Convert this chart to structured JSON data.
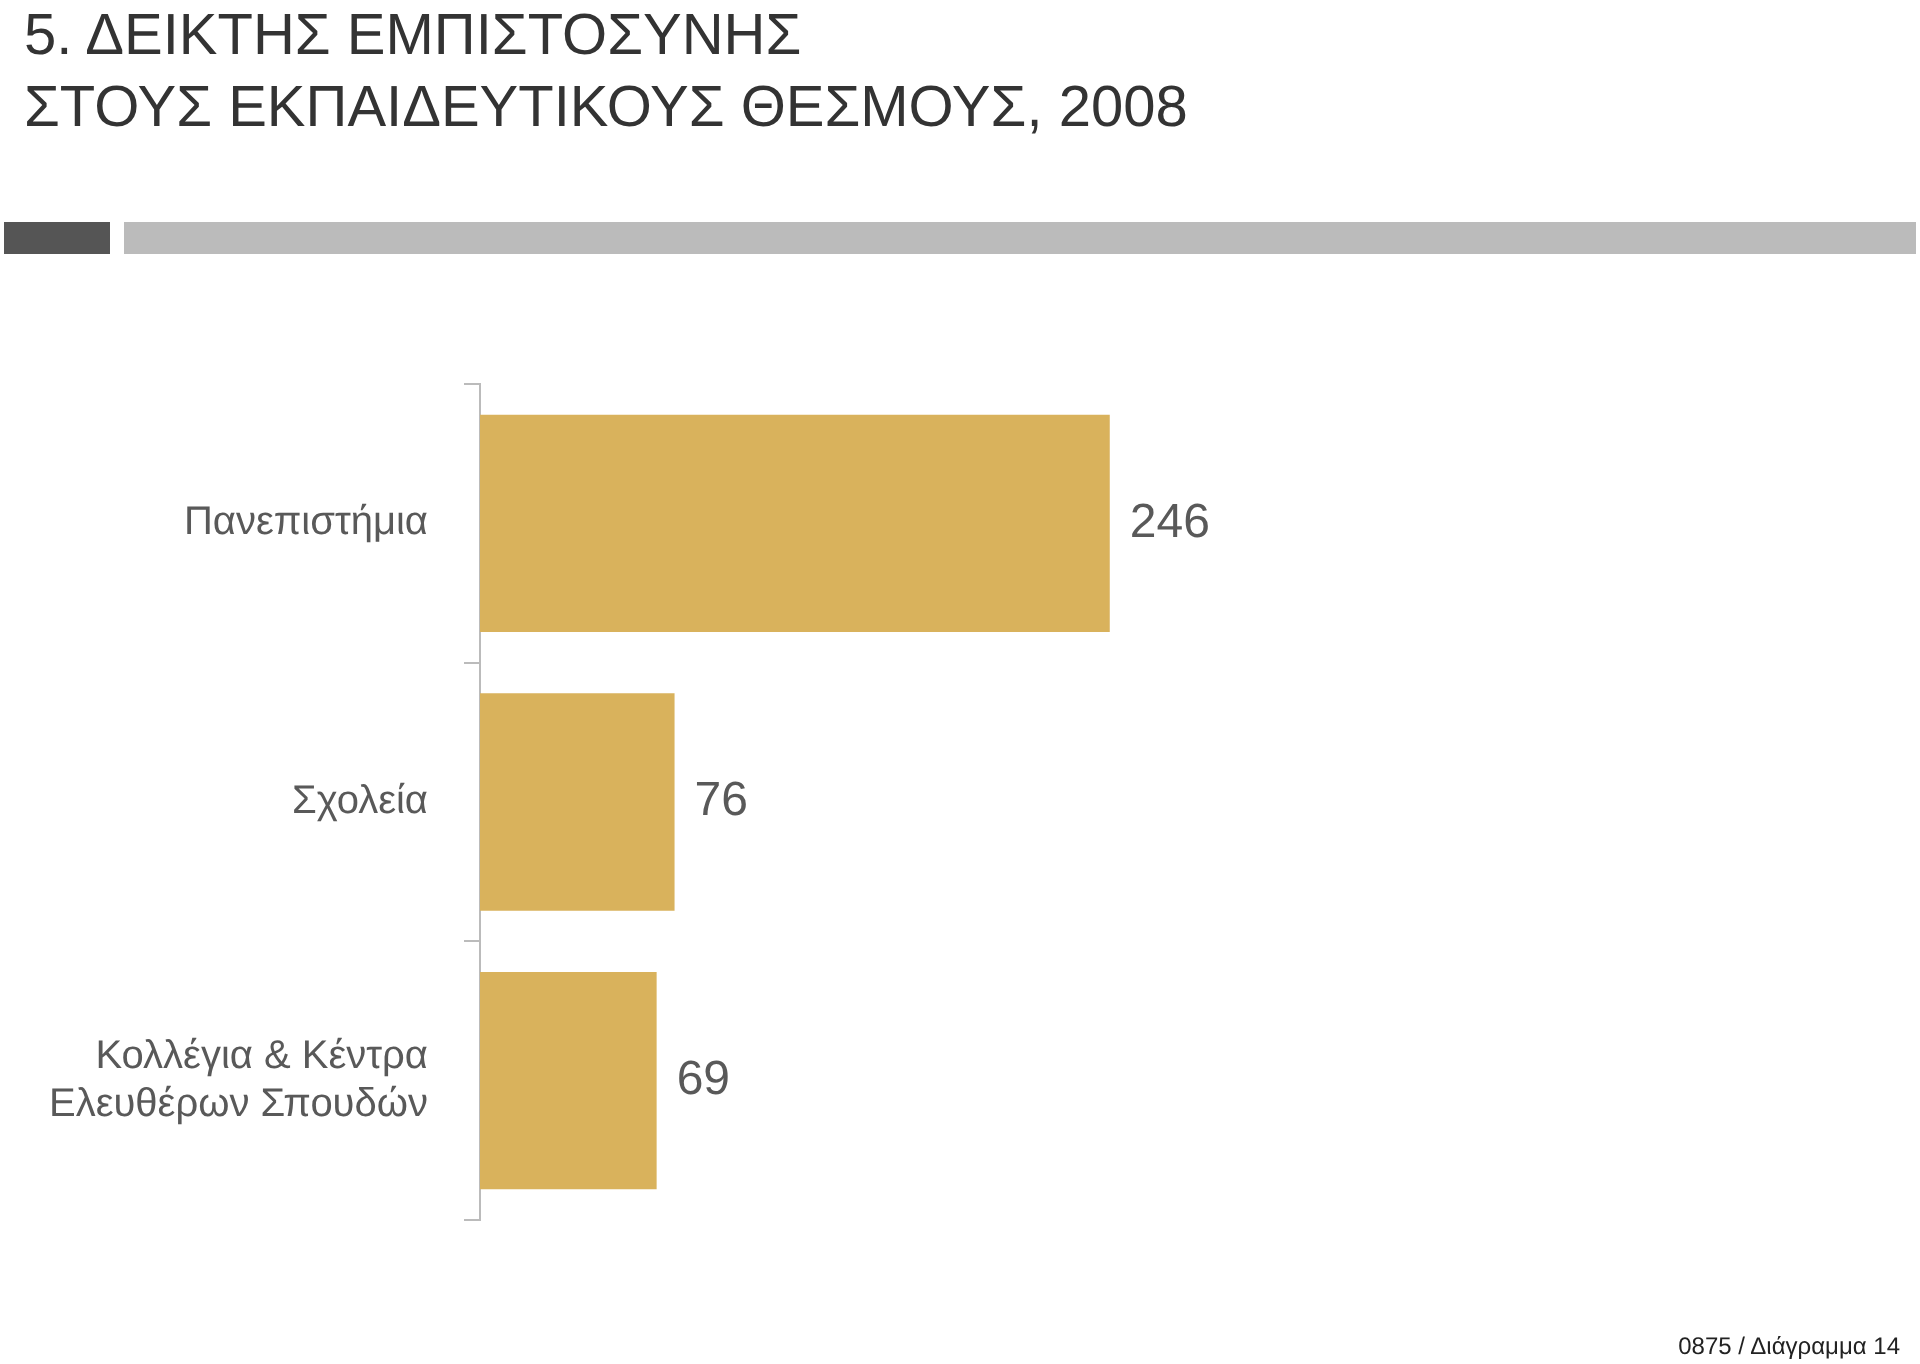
{
  "chart_data": {
    "type": "bar",
    "orientation": "horizontal",
    "title": "5. ΔΕΙΚΤΗΣ ΕΜΠΙΣΤΟΣΥΝΗΣ\nΣΤΟΥΣ ΕΚΠΑΙΔΕΥΤΙΚΟΥΣ ΘΕΣΜΟΥΣ, 2008",
    "categories": [
      "Πανεπιστήμια",
      "Σχολεία",
      "Κολλέγια & Κέντρα Ελευθέρων Σπουδών"
    ],
    "values": [
      246,
      76,
      69
    ],
    "color": "#d9b25c",
    "tick_labels": "y",
    "data_labels": true,
    "annotations": [
      "0875 / Διάγραμμα 14"
    ]
  }
}
